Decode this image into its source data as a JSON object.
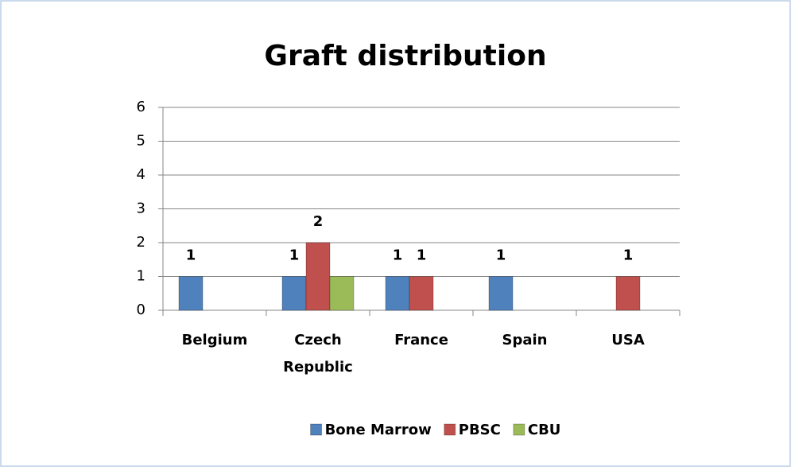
{
  "chart_data": {
    "type": "bar",
    "title": "Graft distribution",
    "categories": [
      "Belgium",
      "Czech Republic",
      "France",
      "Spain",
      "USA"
    ],
    "series": [
      {
        "name": "Bone Marrow",
        "color": "#4f81bd",
        "values": [
          1,
          1,
          1,
          1,
          null
        ],
        "show_labels": true
      },
      {
        "name": "PBSC",
        "color": "#c0504d",
        "values": [
          null,
          2,
          1,
          null,
          1
        ],
        "show_labels": true
      },
      {
        "name": "CBU",
        "color": "#9bbb59",
        "values": [
          null,
          1,
          null,
          null,
          null
        ],
        "show_labels": false
      }
    ],
    "ylim": [
      0,
      6
    ],
    "yticks": [
      0,
      1,
      2,
      3,
      4,
      5,
      6
    ],
    "grid": true,
    "legend": "bottom"
  }
}
